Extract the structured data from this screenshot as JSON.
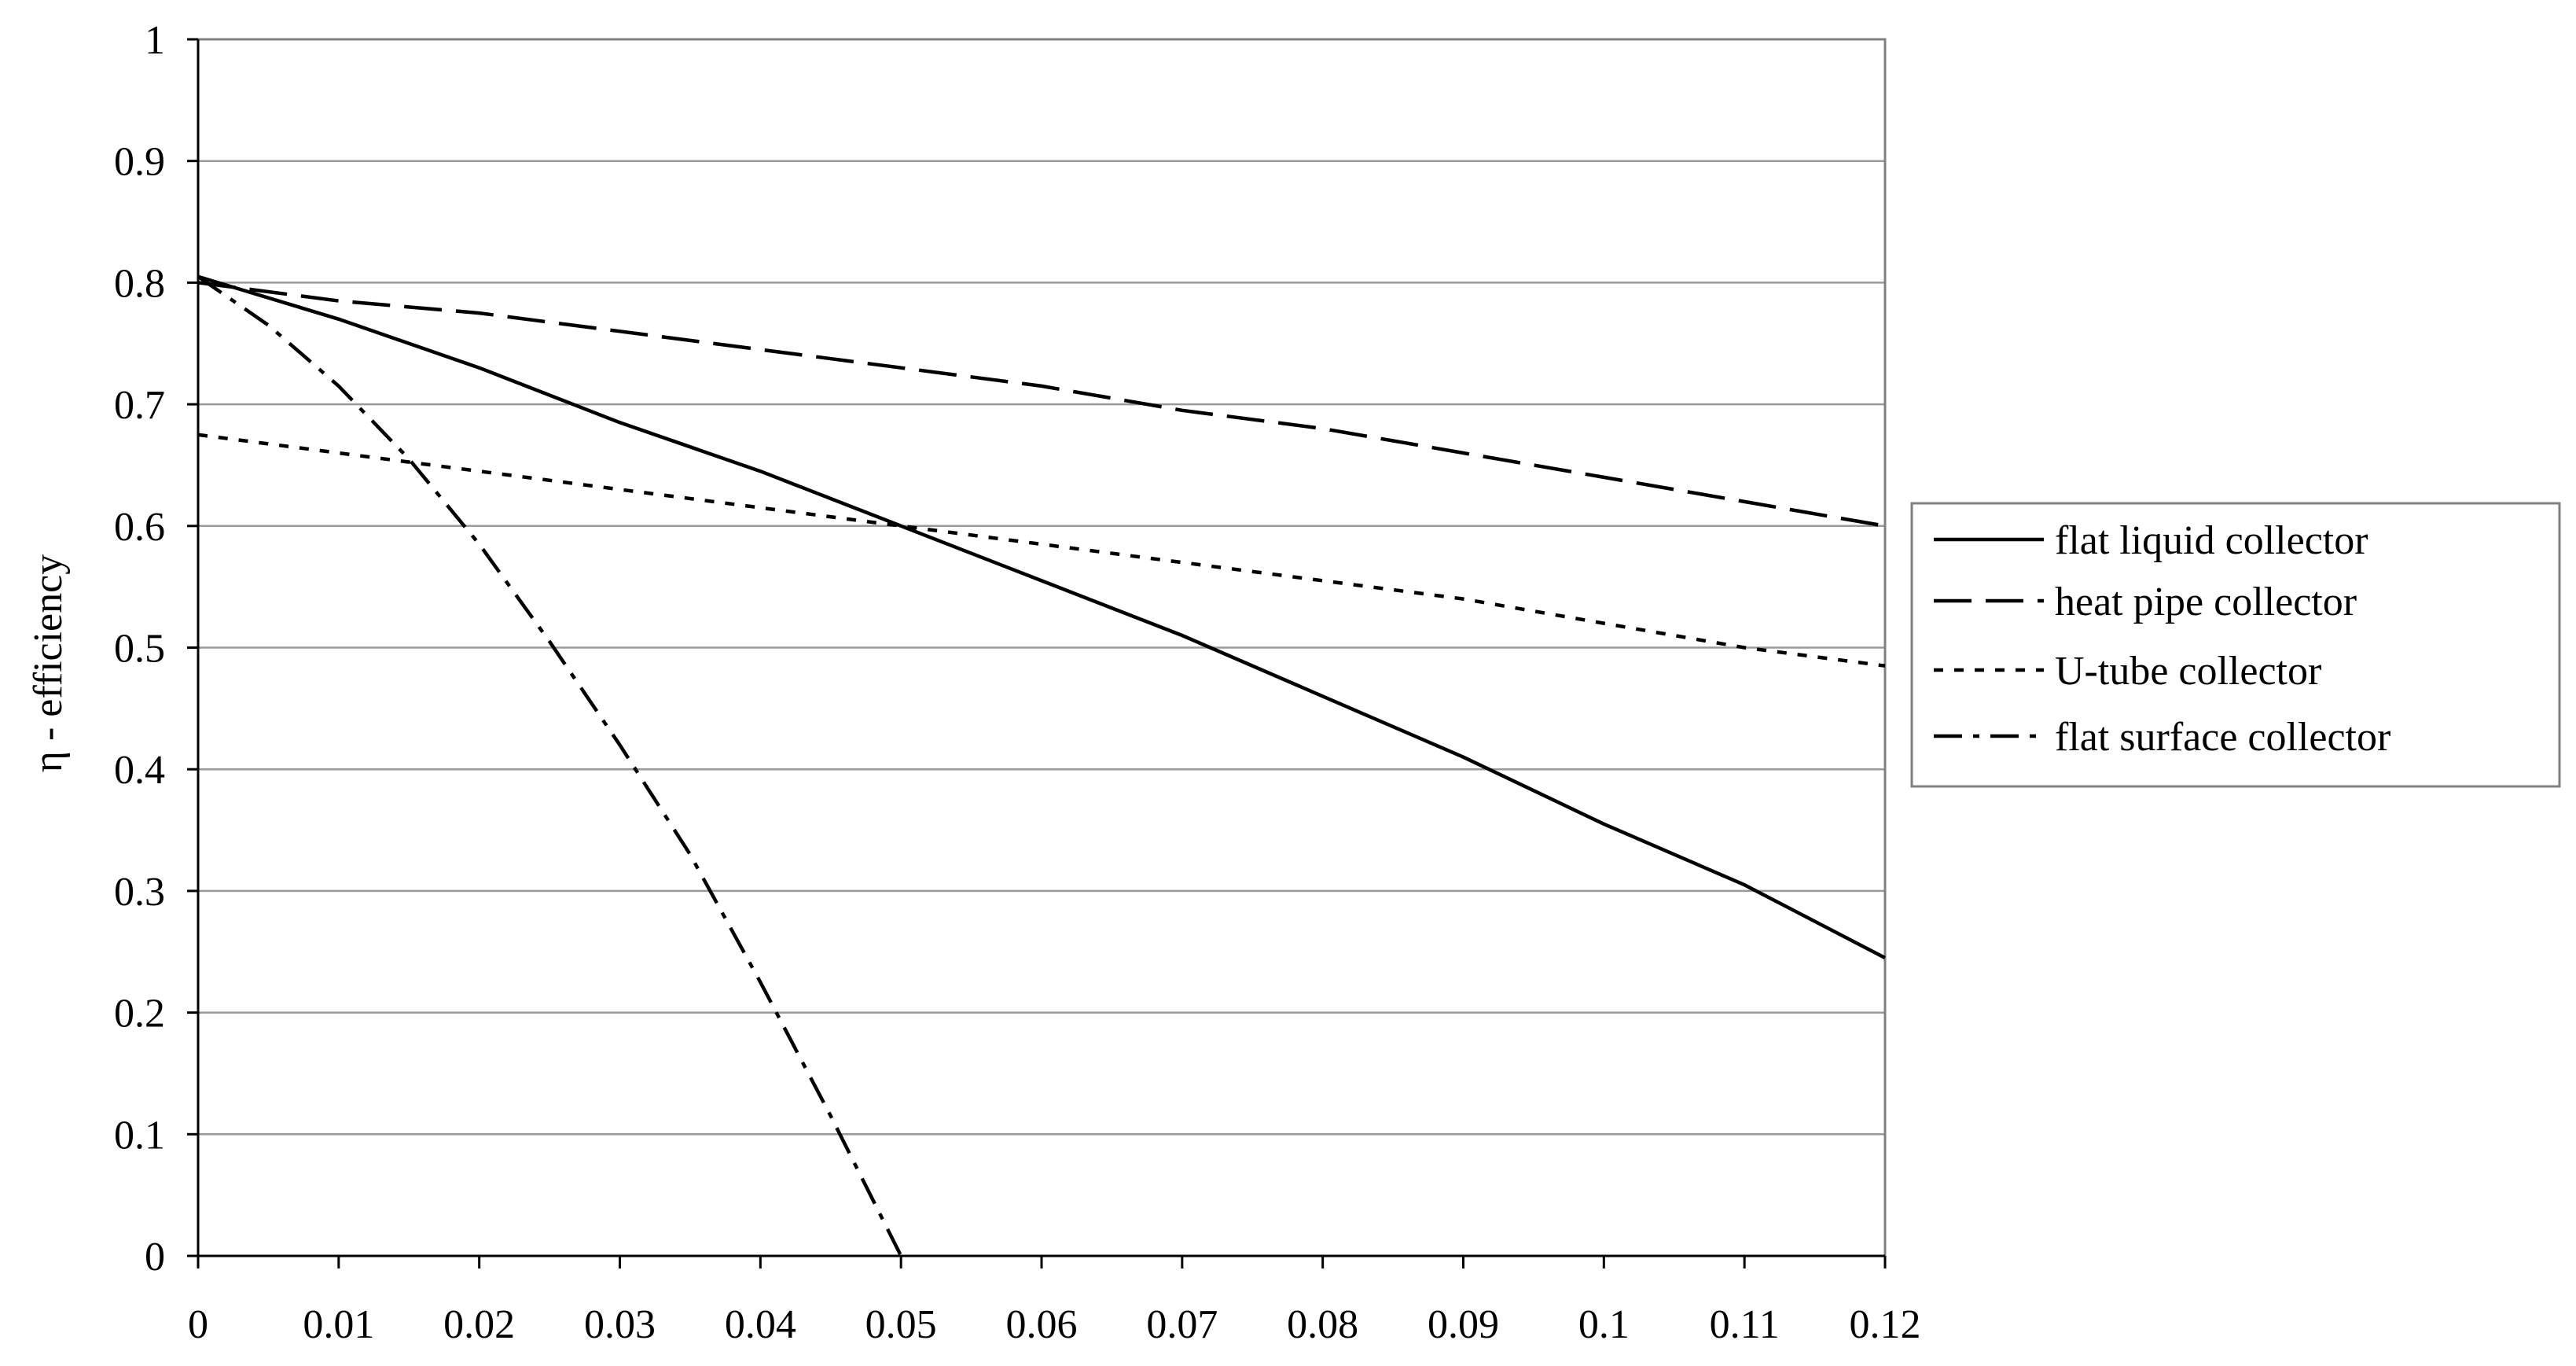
{
  "chart_data": {
    "type": "line",
    "ylabel": "η - efficiency",
    "xlabel": "",
    "xlim": [
      0,
      0.12
    ],
    "ylim": [
      0,
      1
    ],
    "x_ticks": [
      "0",
      "0.01",
      "0.02",
      "0.03",
      "0.04",
      "0.05",
      "0.06",
      "0.07",
      "0.08",
      "0.09",
      "0.1",
      "0.11",
      "0.12"
    ],
    "y_ticks": [
      "0",
      "0.1",
      "0.2",
      "0.3",
      "0.4",
      "0.5",
      "0.6",
      "0.7",
      "0.8",
      "0.9",
      "1"
    ],
    "grid": "horizontal",
    "legend_position": "right",
    "series": [
      {
        "name": "flat liquid collector",
        "style": "solid",
        "x": [
          0,
          0.01,
          0.02,
          0.03,
          0.04,
          0.05,
          0.06,
          0.07,
          0.08,
          0.09,
          0.1,
          0.11,
          0.12
        ],
        "values": [
          0.805,
          0.77,
          0.73,
          0.685,
          0.645,
          0.6,
          0.555,
          0.51,
          0.46,
          0.41,
          0.355,
          0.305,
          0.245
        ]
      },
      {
        "name": "heat pipe collector",
        "style": "dashed",
        "x": [
          0,
          0.01,
          0.02,
          0.03,
          0.04,
          0.05,
          0.06,
          0.07,
          0.08,
          0.09,
          0.1,
          0.11,
          0.12
        ],
        "values": [
          0.8,
          0.785,
          0.775,
          0.76,
          0.745,
          0.73,
          0.715,
          0.695,
          0.68,
          0.66,
          0.64,
          0.62,
          0.6
        ]
      },
      {
        "name": "U-tube collector",
        "style": "dotted",
        "x": [
          0,
          0.01,
          0.02,
          0.03,
          0.04,
          0.05,
          0.06,
          0.07,
          0.08,
          0.09,
          0.1,
          0.11,
          0.12
        ],
        "values": [
          0.675,
          0.66,
          0.645,
          0.63,
          0.615,
          0.6,
          0.585,
          0.57,
          0.555,
          0.54,
          0.52,
          0.5,
          0.485
        ]
      },
      {
        "name": "flat surface collector",
        "style": "dashdot",
        "x": [
          0,
          0.005,
          0.01,
          0.015,
          0.02,
          0.025,
          0.03,
          0.035,
          0.04,
          0.045,
          0.05
        ],
        "values": [
          0.805,
          0.765,
          0.715,
          0.655,
          0.585,
          0.505,
          0.42,
          0.33,
          0.225,
          0.115,
          0.0
        ]
      }
    ],
    "colors": {
      "lines": "#000000",
      "grid": "#9a9a9a",
      "frame": "#808080"
    }
  }
}
